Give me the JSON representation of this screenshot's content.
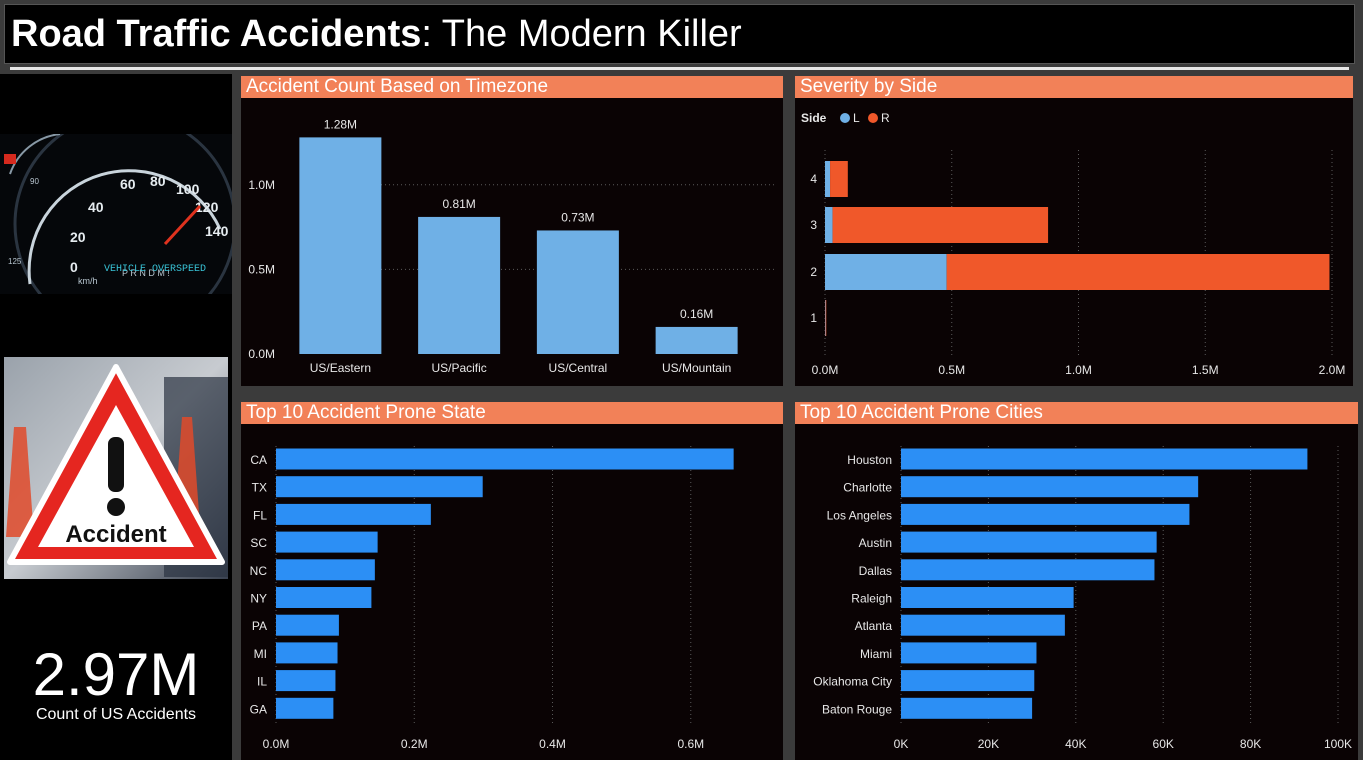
{
  "header": {
    "title_bold": "Road Traffic Accidents",
    "title_rest": ": The Modern Killer"
  },
  "images": {
    "speedometer_text": "VEHICLE OVERSPEED",
    "accident_sign_text": "Accident"
  },
  "kpi": {
    "value": "2.97M",
    "label": "Count of US Accidents"
  },
  "panels": {
    "timezone_title": "Accident Count Based on Timezone",
    "severity_title": "Severity by Side",
    "states_title": "Top 10 Accident Prone State",
    "cities_title": "Top 10 Accident Prone Cities"
  },
  "colors": {
    "panel_header": "#f28158",
    "bar_light": "#6fb0e6",
    "bar_blue": "#2c8ff5",
    "side_l": "#6fb0e6",
    "side_r": "#f0582a"
  },
  "chart_data": [
    {
      "type": "bar",
      "title": "Accident Count Based on Timezone",
      "categories": [
        "US/Eastern",
        "US/Pacific",
        "US/Central",
        "US/Mountain"
      ],
      "values": [
        1280000,
        810000,
        730000,
        160000
      ],
      "data_labels": [
        "1.28M",
        "0.81M",
        "0.73M",
        "0.16M"
      ],
      "y_ticks": [
        "0.0M",
        "0.5M",
        "1.0M"
      ],
      "ylim": [
        0,
        1300000
      ],
      "grid": true
    },
    {
      "type": "bar",
      "orientation": "horizontal",
      "stacked": true,
      "title": "Severity by Side",
      "legend_title": "Side",
      "legend_position": "top-left",
      "categories": [
        "4",
        "3",
        "2",
        "1"
      ],
      "series": [
        {
          "name": "L",
          "values": [
            20000,
            30000,
            480000,
            2000
          ]
        },
        {
          "name": "R",
          "values": [
            70000,
            850000,
            1510000,
            3000
          ]
        }
      ],
      "x_ticks": [
        "0.0M",
        "0.5M",
        "1.0M",
        "1.5M",
        "2.0M"
      ],
      "xlim": [
        0,
        2000000
      ],
      "grid": true
    },
    {
      "type": "bar",
      "orientation": "horizontal",
      "title": "Top 10 Accident Prone State",
      "categories": [
        "CA",
        "TX",
        "FL",
        "SC",
        "NC",
        "NY",
        "PA",
        "MI",
        "IL",
        "GA"
      ],
      "values": [
        662000,
        299000,
        224000,
        147000,
        143000,
        138000,
        91000,
        89000,
        86000,
        83000
      ],
      "x_ticks": [
        "0.0M",
        "0.2M",
        "0.4M",
        "0.6M"
      ],
      "xlim": [
        0,
        0.69
      ],
      "xlim_units": "millions",
      "grid": true
    },
    {
      "type": "bar",
      "orientation": "horizontal",
      "title": "Top 10 Accident Prone Cities",
      "categories": [
        "Houston",
        "Charlotte",
        "Los Angeles",
        "Austin",
        "Dallas",
        "Raleigh",
        "Atlanta",
        "Miami",
        "Oklahoma City",
        "Baton Rouge"
      ],
      "values": [
        93000,
        68000,
        66000,
        58500,
        58000,
        39500,
        37500,
        31000,
        30500,
        30000
      ],
      "x_ticks": [
        "0K",
        "20K",
        "40K",
        "60K",
        "80K",
        "100K"
      ],
      "xlim": [
        0,
        100000
      ],
      "grid": true
    }
  ]
}
